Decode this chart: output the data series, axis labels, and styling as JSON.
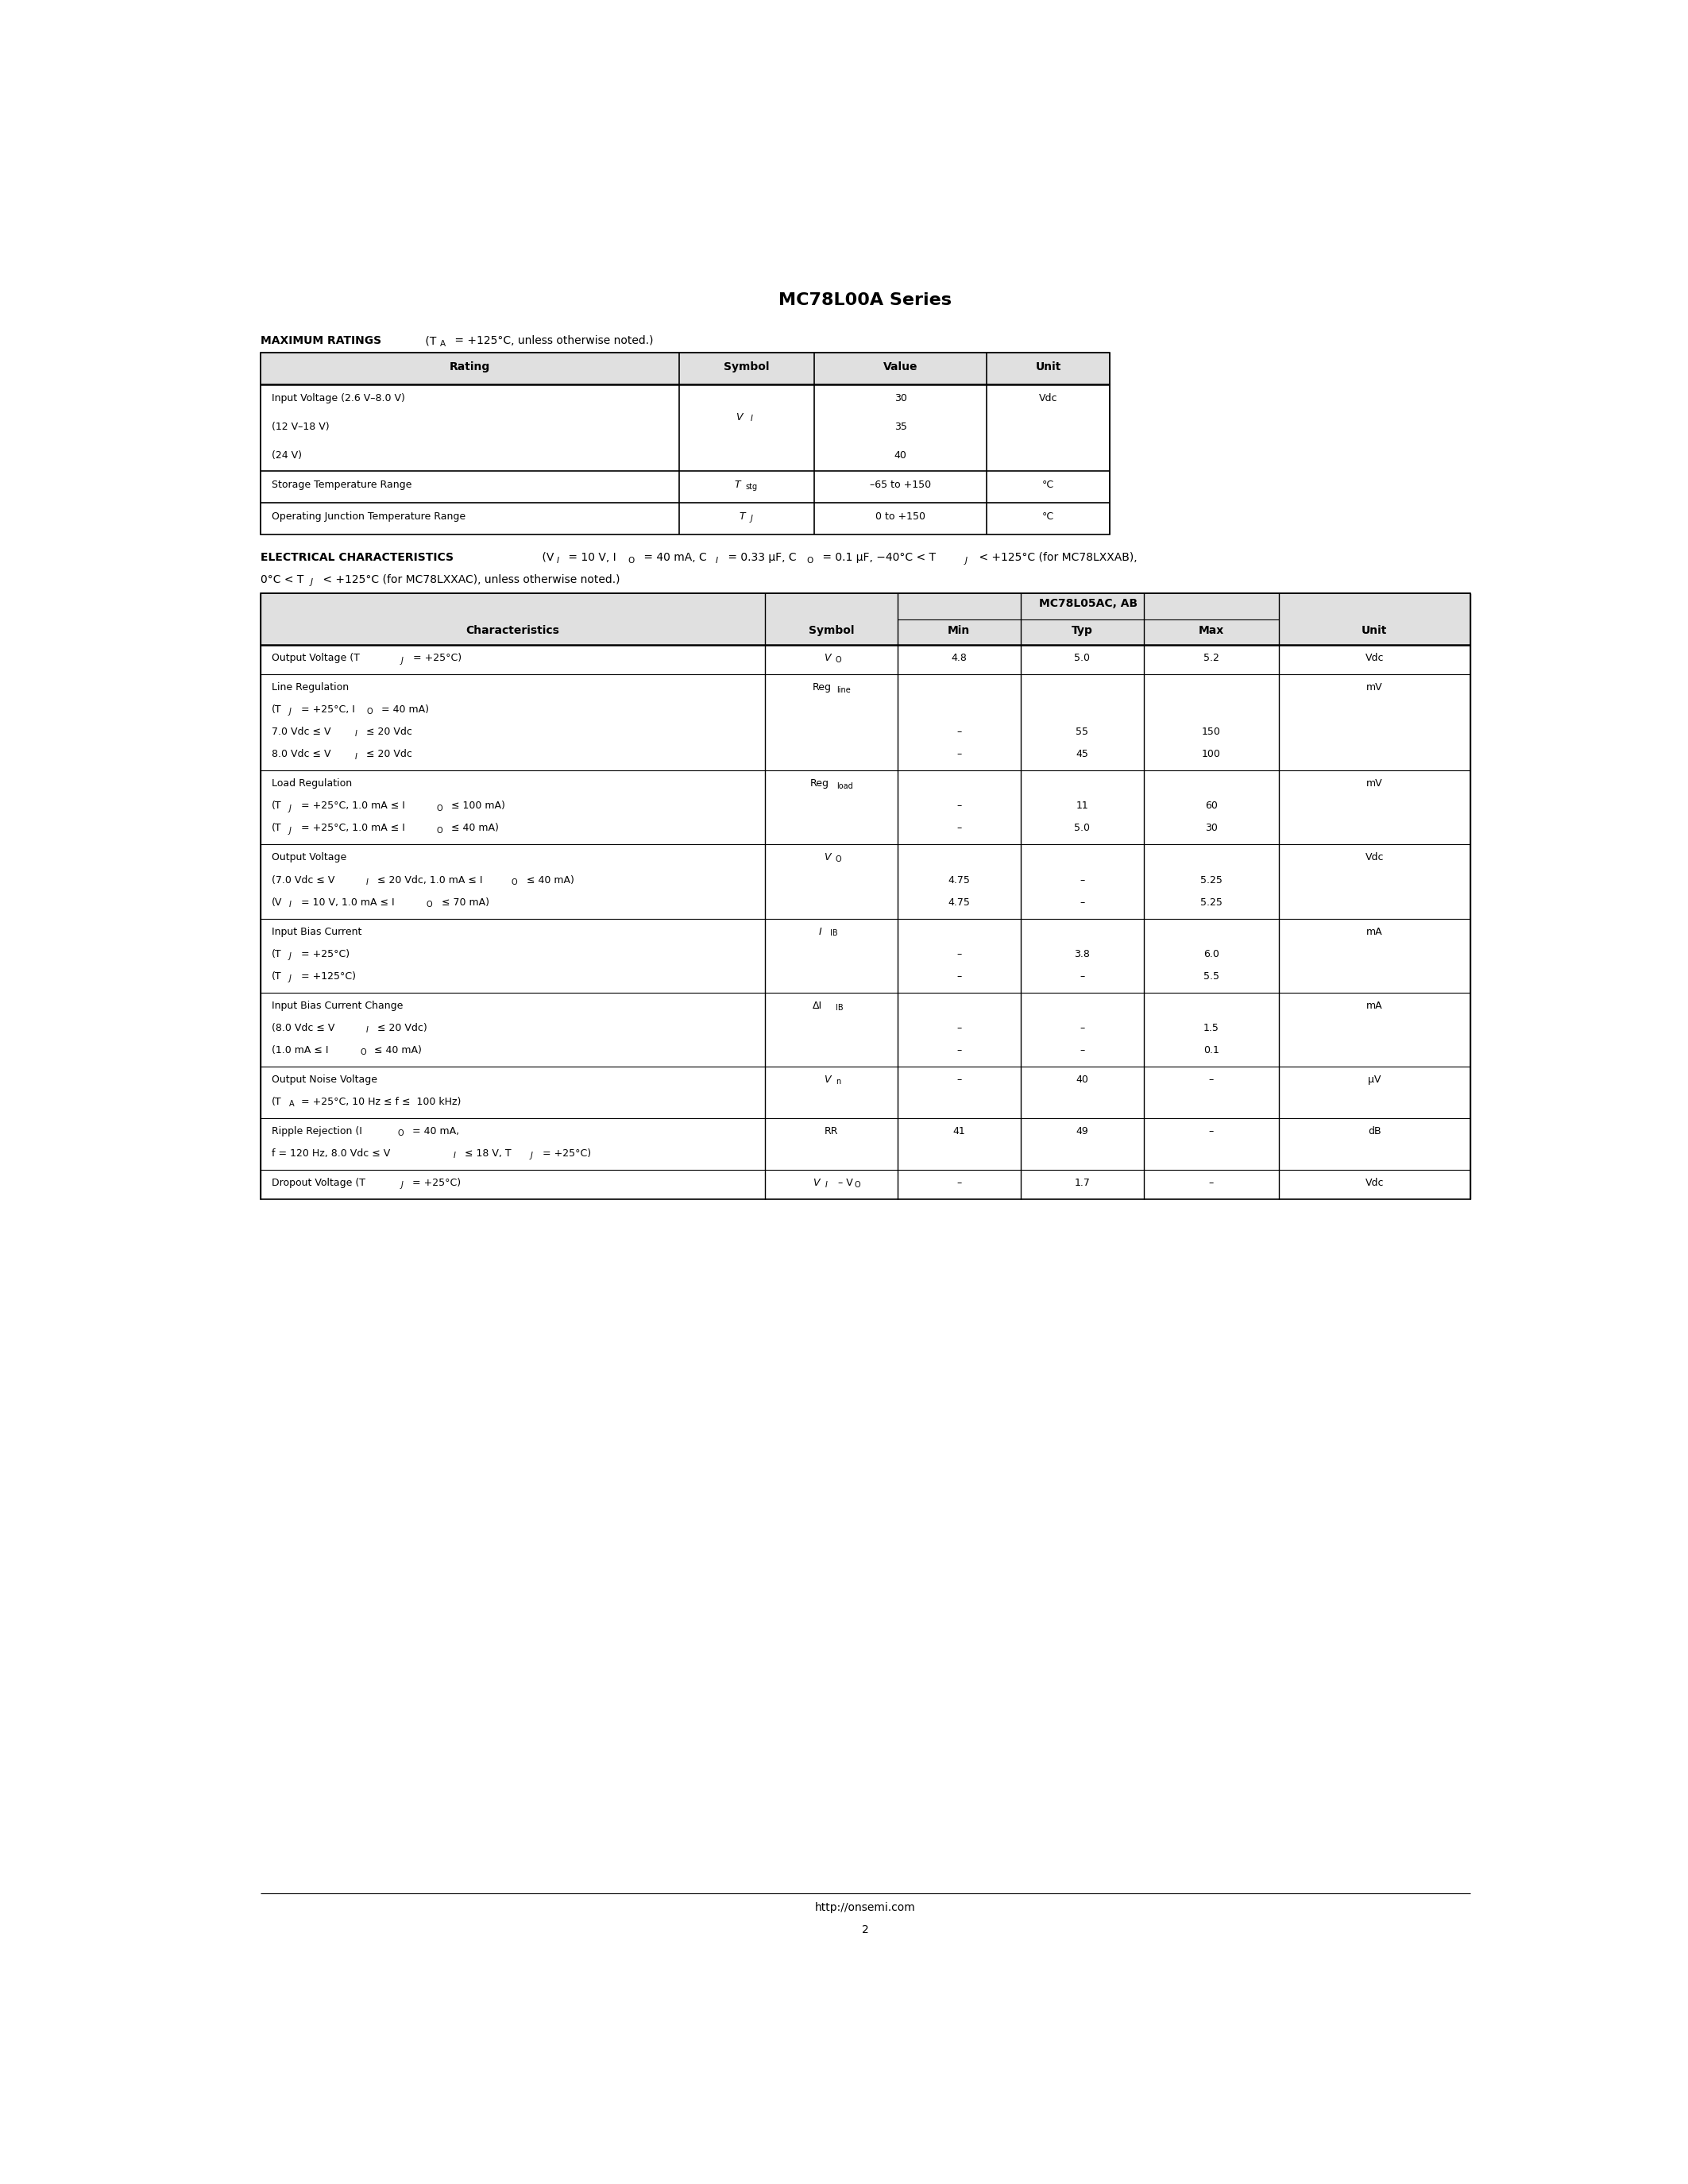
{
  "title": "MC78L00A Series",
  "page_number": "2",
  "footer_url": "http://onsemi.com"
}
